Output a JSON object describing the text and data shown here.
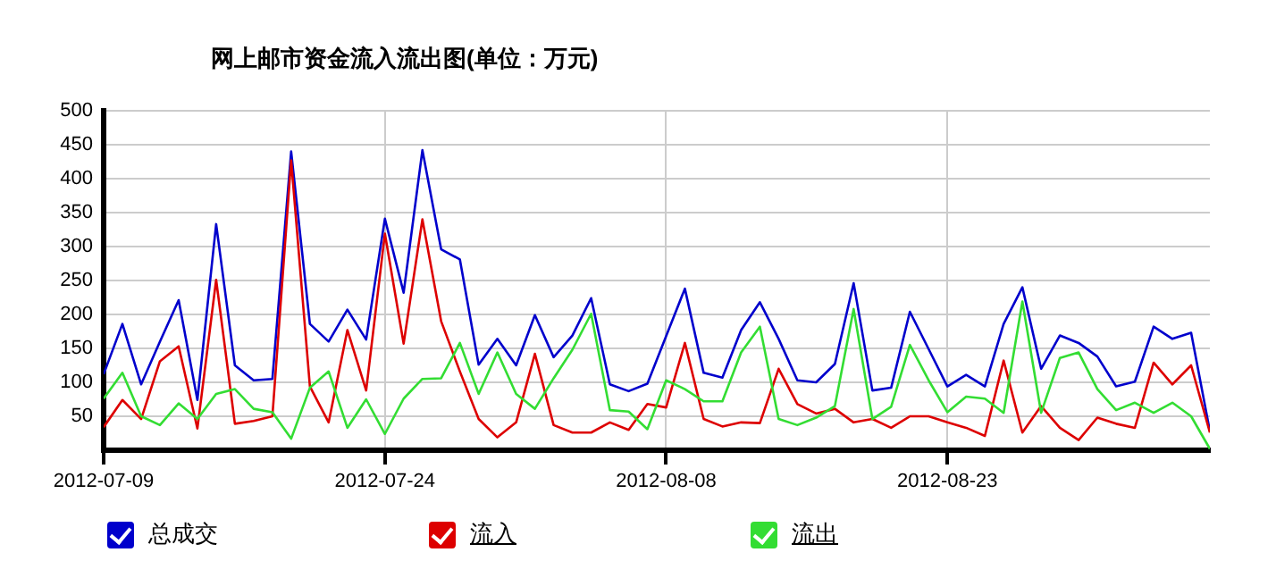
{
  "chart_data": {
    "type": "line",
    "title": "网上邮市资金流入流出图(单位：万元)",
    "x": [
      "2012-07-09",
      "2012-07-10",
      "2012-07-11",
      "2012-07-12",
      "2012-07-13",
      "2012-07-14",
      "2012-07-15",
      "2012-07-16",
      "2012-07-17",
      "2012-07-18",
      "2012-07-19",
      "2012-07-20",
      "2012-07-21",
      "2012-07-22",
      "2012-07-23",
      "2012-07-24",
      "2012-07-25",
      "2012-07-26",
      "2012-07-27",
      "2012-07-28",
      "2012-07-29",
      "2012-07-30",
      "2012-07-31",
      "2012-08-01",
      "2012-08-02",
      "2012-08-03",
      "2012-08-04",
      "2012-08-05",
      "2012-08-06",
      "2012-08-07",
      "2012-08-08",
      "2012-08-09",
      "2012-08-10",
      "2012-08-11",
      "2012-08-12",
      "2012-08-13",
      "2012-08-14",
      "2012-08-15",
      "2012-08-16",
      "2012-08-17",
      "2012-08-18",
      "2012-08-19",
      "2012-08-20",
      "2012-08-21",
      "2012-08-22",
      "2012-08-23",
      "2012-08-24",
      "2012-08-25",
      "2012-08-26",
      "2012-08-27",
      "2012-08-28",
      "2012-08-29",
      "2012-08-30",
      "2012-08-31",
      "2012-09-01",
      "2012-09-02",
      "2012-09-03",
      "2012-09-04",
      "2012-09-05",
      "2012-09-06"
    ],
    "series": [
      {
        "name": "总成交",
        "color": "#0000cc",
        "values": [
          112,
          186,
          97,
          160,
          221,
          74,
          333,
          125,
          103,
          105,
          440,
          186,
          160,
          207,
          163,
          341,
          232,
          442,
          296,
          281,
          126,
          164,
          125,
          199,
          137,
          169,
          224,
          97,
          87,
          98,
          168,
          238,
          114,
          107,
          177,
          218,
          164,
          103,
          100,
          127,
          246,
          88,
          92,
          204,
          149,
          94,
          111,
          94,
          186,
          240,
          120,
          169,
          158,
          138,
          94,
          101,
          182,
          164,
          173,
          28
        ]
      },
      {
        "name": "流入",
        "color": "#dd0000",
        "values": [
          34,
          74,
          46,
          131,
          153,
          32,
          251,
          39,
          43,
          50,
          427,
          94,
          41,
          177,
          88,
          319,
          157,
          340,
          190,
          116,
          46,
          19,
          41,
          142,
          37,
          26,
          26,
          41,
          30,
          68,
          63,
          158,
          46,
          35,
          41,
          40,
          120,
          68,
          54,
          61,
          41,
          46,
          33,
          50,
          50,
          41,
          33,
          21,
          132,
          26,
          65,
          33,
          15,
          48,
          39,
          33,
          129,
          97,
          125,
          26
        ]
      },
      {
        "name": "流出",
        "color": "#33dd33",
        "values": [
          76,
          114,
          50,
          37,
          69,
          46,
          83,
          90,
          61,
          56,
          17,
          92,
          116,
          33,
          75,
          24,
          76,
          105,
          106,
          158,
          83,
          144,
          83,
          61,
          106,
          148,
          201,
          59,
          57,
          31,
          103,
          90,
          72,
          72,
          144,
          182,
          46,
          37,
          48,
          65,
          208,
          46,
          64,
          155,
          103,
          56,
          79,
          76,
          55,
          219,
          55,
          136,
          144,
          90,
          59,
          70,
          55,
          70,
          50,
          2
        ]
      }
    ],
    "xlim": [
      "2012-07-09",
      "2012-09-06"
    ],
    "xticks": [
      "2012-07-09",
      "2012-07-24",
      "2012-08-08",
      "2012-08-23"
    ],
    "ylim": [
      0,
      500
    ],
    "yticks": [
      {
        "value": 0,
        "label": null
      },
      50,
      100,
      150,
      200,
      250,
      300,
      350,
      400,
      450,
      500
    ],
    "grid": true,
    "legend": "bottom",
    "marker": "none",
    "line_style": "solid"
  }
}
